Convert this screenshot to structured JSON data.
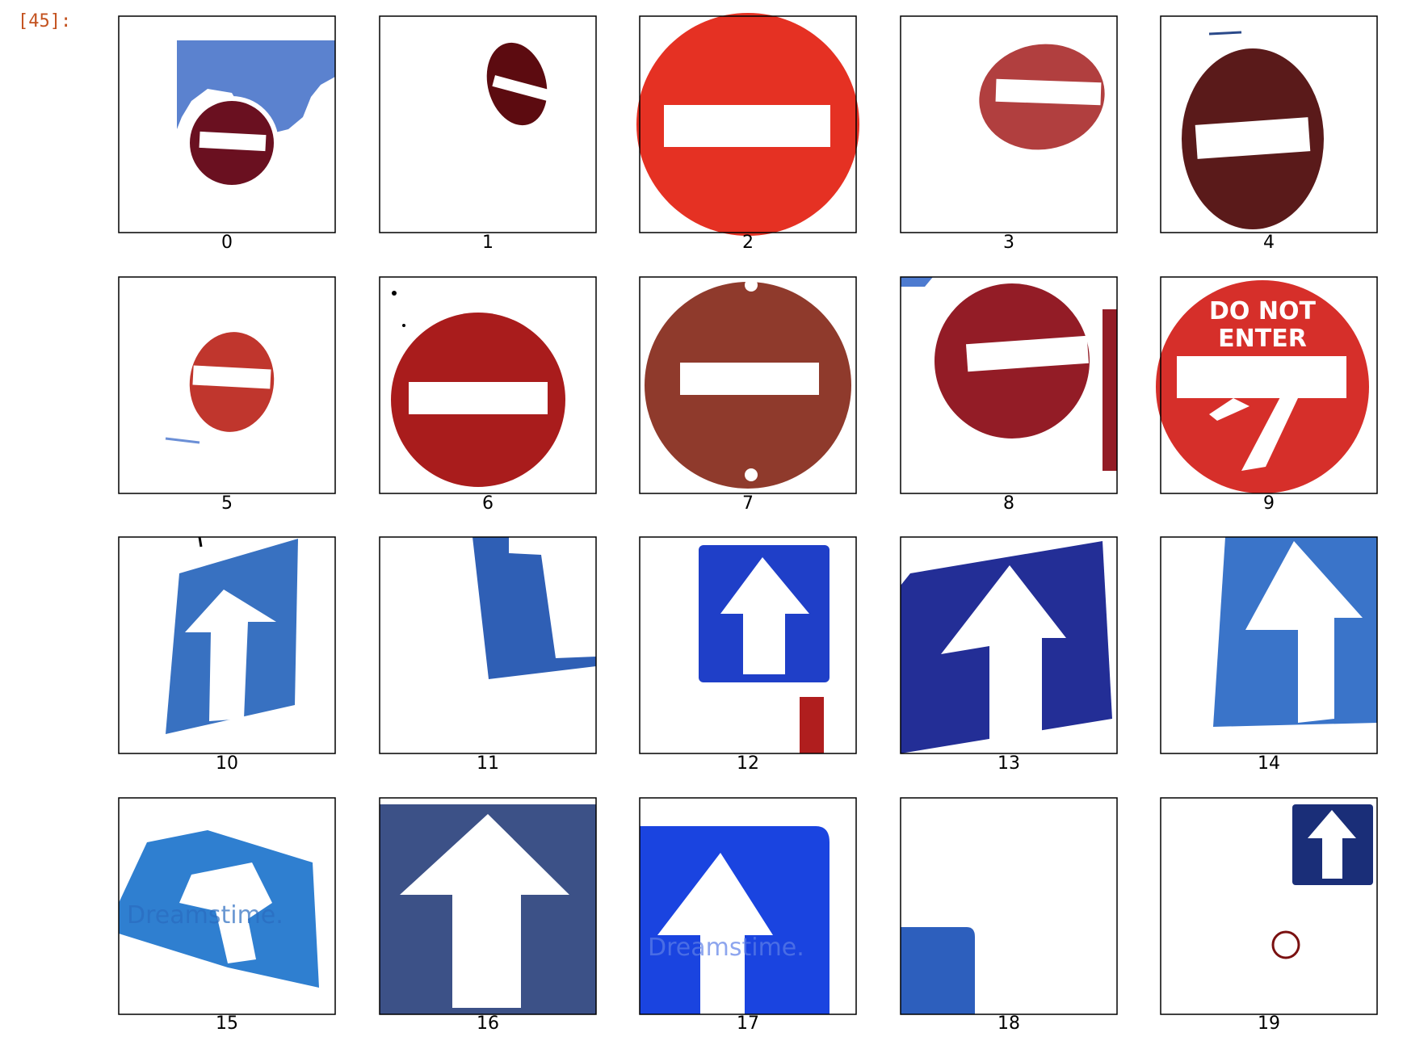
{
  "cell_prompt": "[45]:",
  "labels": [
    "0",
    "1",
    "2",
    "3",
    "4",
    "5",
    "6",
    "7",
    "8",
    "9",
    "10",
    "11",
    "12",
    "13",
    "14",
    "15",
    "16",
    "17",
    "18",
    "19"
  ],
  "sign_text": {
    "line1": "DO NOT",
    "line2": "ENTER"
  },
  "watermark": "Dreamstime."
}
